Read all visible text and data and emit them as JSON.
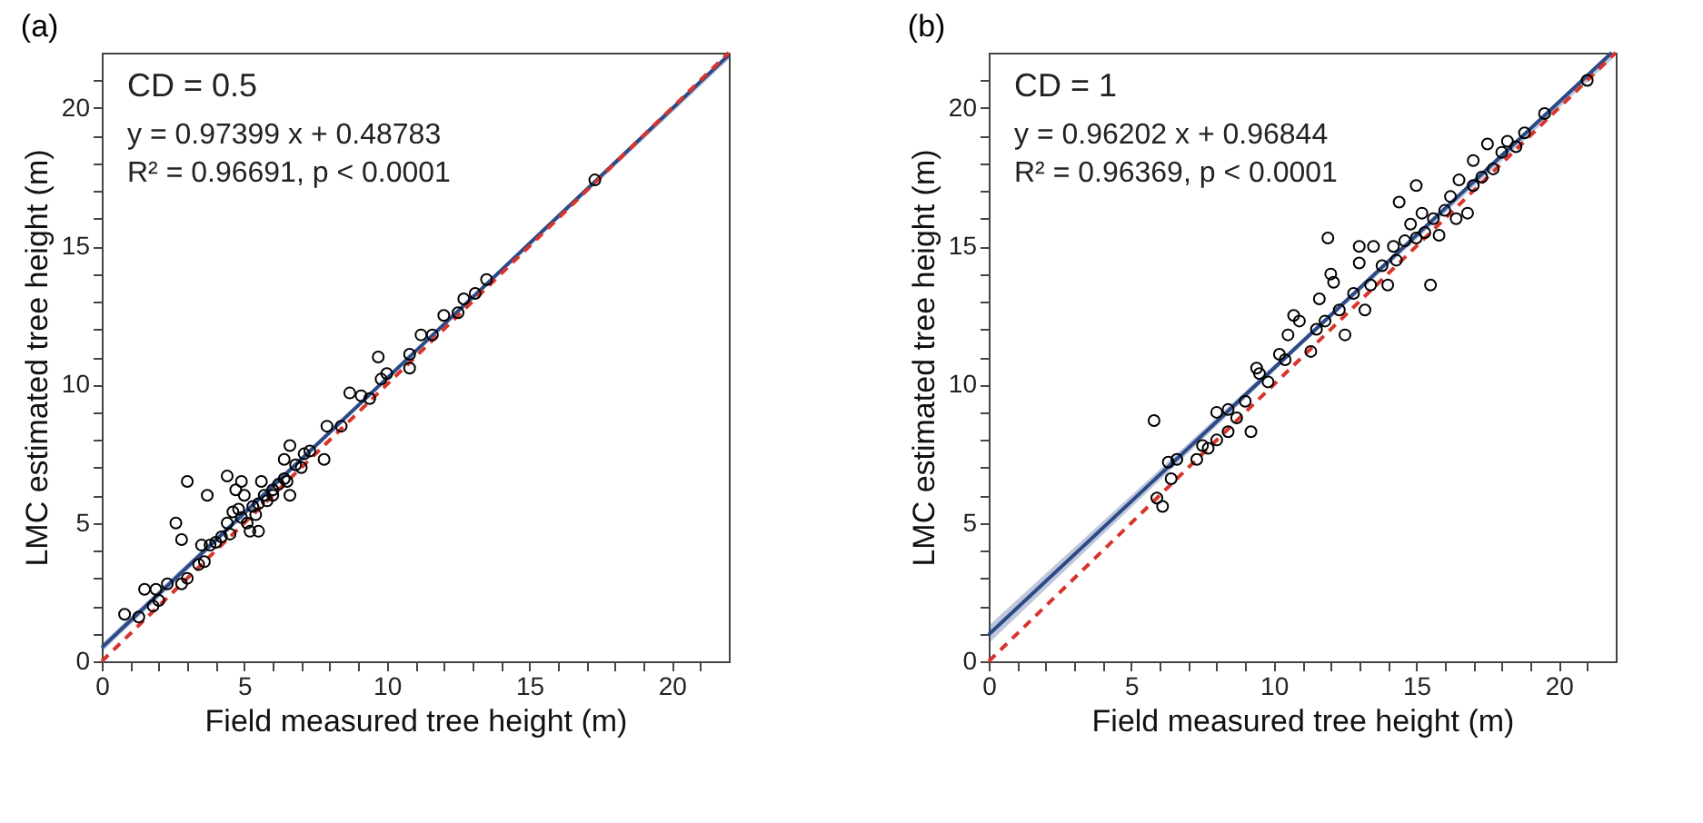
{
  "chart_data": [
    {
      "type": "scatter",
      "title": "(a)",
      "xlabel": "Field measured tree height (m)",
      "ylabel": "LMC estimated tree height (m)",
      "annotations": [
        "CD = 0.5",
        "y = 0.97399 x + 0.48783",
        "R² = 0.96691,  p < 0.0001"
      ],
      "xlim": [
        0,
        22
      ],
      "ylim": [
        0,
        22
      ],
      "xticks": [
        0,
        {
          "value": 1,
          "label": null
        },
        {
          "value": 2,
          "label": null
        },
        {
          "value": 3,
          "label": null
        },
        {
          "value": 4,
          "label": null
        },
        5,
        {
          "value": 6,
          "label": null
        },
        {
          "value": 7,
          "label": null
        },
        {
          "value": 8,
          "label": null
        },
        {
          "value": 9,
          "label": null
        },
        10,
        {
          "value": 11,
          "label": null
        },
        {
          "value": 12,
          "label": null
        },
        {
          "value": 13,
          "label": null
        },
        {
          "value": 14,
          "label": null
        },
        15,
        {
          "value": 16,
          "label": null
        },
        {
          "value": 17,
          "label": null
        },
        {
          "value": 18,
          "label": null
        },
        {
          "value": 19,
          "label": null
        },
        20,
        {
          "value": 21,
          "label": null
        }
      ],
      "yticks": [
        0,
        {
          "value": 1,
          "label": null
        },
        {
          "value": 2,
          "label": null
        },
        {
          "value": 3,
          "label": null
        },
        {
          "value": 4,
          "label": null
        },
        5,
        {
          "value": 6,
          "label": null
        },
        {
          "value": 7,
          "label": null
        },
        {
          "value": 8,
          "label": null
        },
        {
          "value": 9,
          "label": null
        },
        10,
        {
          "value": 11,
          "label": null
        },
        {
          "value": 12,
          "label": null
        },
        {
          "value": 13,
          "label": null
        },
        {
          "value": 14,
          "label": null
        },
        15,
        {
          "value": 16,
          "label": null
        },
        {
          "value": 17,
          "label": null
        },
        {
          "value": 18,
          "label": null
        },
        {
          "value": 19,
          "label": null
        },
        20,
        {
          "value": 21,
          "label": null
        }
      ],
      "grid": false,
      "series": [
        {
          "type": "line",
          "color": "#2c4a87",
          "x": [
            0,
            11,
            22
          ],
          "values": [
            0.49,
            11.2,
            21.92
          ],
          "lower": [
            0.34,
            11.13,
            21.75
          ],
          "upper": [
            0.64,
            11.27,
            22.0
          ],
          "line_style": "solid",
          "marker": "none"
        },
        {
          "type": "line",
          "color": "#d9342b",
          "x": [
            0,
            22
          ],
          "values": [
            0,
            22
          ],
          "line_style": "dashed",
          "marker": "none"
        },
        {
          "color": "#000000",
          "marker": "circle",
          "x": [
            0.8,
            1.3,
            1.5,
            1.8,
            1.9,
            2.0,
            2.3,
            2.6,
            2.8,
            2.8,
            3.0,
            3.0,
            3.4,
            3.6,
            3.7,
            3.5,
            3.8,
            4.0,
            4.2,
            4.4,
            4.4,
            4.5,
            4.6,
            4.7,
            4.8,
            4.9,
            4.9,
            5.0,
            5.1,
            5.2,
            5.3,
            5.4,
            5.5,
            5.5,
            5.6,
            5.7,
            5.8,
            6.0,
            6.0,
            6.2,
            6.4,
            6.4,
            6.5,
            6.6,
            6.6,
            6.8,
            7.0,
            7.1,
            7.3,
            7.8,
            7.9,
            8.4,
            8.7,
            9.1,
            9.4,
            9.7,
            9.8,
            10.0,
            10.8,
            10.8,
            11.2,
            11.6,
            12.0,
            12.5,
            12.7,
            13.1,
            13.5,
            17.3
          ],
          "values": [
            1.7,
            1.6,
            2.6,
            2.0,
            2.6,
            2.2,
            2.8,
            5.0,
            4.4,
            2.8,
            6.5,
            3.0,
            3.5,
            3.6,
            6.0,
            4.2,
            4.2,
            4.3,
            4.5,
            5.0,
            6.7,
            4.6,
            5.4,
            6.2,
            5.5,
            5.2,
            6.5,
            6.0,
            5.0,
            4.7,
            5.6,
            5.3,
            5.7,
            4.7,
            6.5,
            6.0,
            5.8,
            6.2,
            6.0,
            6.4,
            6.6,
            7.3,
            6.5,
            7.8,
            6.0,
            7.1,
            7.0,
            7.5,
            7.6,
            7.3,
            8.5,
            8.5,
            9.7,
            9.6,
            9.5,
            11.0,
            10.2,
            10.4,
            11.1,
            10.6,
            11.8,
            11.8,
            12.5,
            12.6,
            13.1,
            13.3,
            13.8,
            17.4
          ]
        }
      ]
    },
    {
      "type": "scatter",
      "title": "(b)",
      "xlabel": "Field measured tree height (m)",
      "ylabel": "LMC estimated tree height (m)",
      "annotations": [
        "CD = 1",
        "y = 0.96202 x + 0.96844",
        "R² = 0.96369,  p < 0.0001"
      ],
      "xlim": [
        0,
        22
      ],
      "ylim": [
        0,
        22
      ],
      "xticks": [
        0,
        {
          "value": 1,
          "label": null
        },
        {
          "value": 2,
          "label": null
        },
        {
          "value": 3,
          "label": null
        },
        {
          "value": 4,
          "label": null
        },
        5,
        {
          "value": 6,
          "label": null
        },
        {
          "value": 7,
          "label": null
        },
        {
          "value": 8,
          "label": null
        },
        {
          "value": 9,
          "label": null
        },
        10,
        {
          "value": 11,
          "label": null
        },
        {
          "value": 12,
          "label": null
        },
        {
          "value": 13,
          "label": null
        },
        {
          "value": 14,
          "label": null
        },
        15,
        {
          "value": 16,
          "label": null
        },
        {
          "value": 17,
          "label": null
        },
        {
          "value": 18,
          "label": null
        },
        {
          "value": 19,
          "label": null
        },
        20,
        {
          "value": 21,
          "label": null
        }
      ],
      "yticks": [
        0,
        {
          "value": 1,
          "label": null
        },
        {
          "value": 2,
          "label": null
        },
        {
          "value": 3,
          "label": null
        },
        {
          "value": 4,
          "label": null
        },
        5,
        {
          "value": 6,
          "label": null
        },
        {
          "value": 7,
          "label": null
        },
        {
          "value": 8,
          "label": null
        },
        {
          "value": 9,
          "label": null
        },
        10,
        {
          "value": 11,
          "label": null
        },
        {
          "value": 12,
          "label": null
        },
        {
          "value": 13,
          "label": null
        },
        {
          "value": 14,
          "label": null
        },
        15,
        {
          "value": 16,
          "label": null
        },
        {
          "value": 17,
          "label": null
        },
        {
          "value": 18,
          "label": null
        },
        {
          "value": 19,
          "label": null
        },
        20,
        {
          "value": 21,
          "label": null
        }
      ],
      "grid": false,
      "series": [
        {
          "type": "line",
          "color": "#2c4a87",
          "x": [
            0,
            11,
            21.86
          ],
          "values": [
            0.97,
            11.55,
            22
          ],
          "lower": [
            0.65,
            11.45,
            21.75
          ],
          "upper": [
            1.29,
            11.65,
            22.0
          ],
          "line_style": "solid",
          "marker": "none"
        },
        {
          "type": "line",
          "color": "#d9342b",
          "x": [
            0,
            22
          ],
          "values": [
            0,
            22
          ],
          "line_style": "dashed",
          "marker": "none"
        },
        {
          "color": "#000000",
          "marker": "circle",
          "x": [
            5.8,
            5.9,
            6.1,
            6.3,
            6.4,
            6.6,
            7.3,
            7.5,
            7.7,
            8.0,
            8.0,
            8.4,
            8.4,
            8.7,
            9.0,
            9.2,
            9.4,
            9.5,
            9.8,
            10.2,
            10.4,
            10.5,
            10.7,
            10.9,
            11.3,
            11.5,
            11.6,
            11.8,
            11.9,
            12.0,
            12.1,
            12.3,
            12.5,
            12.8,
            13.0,
            13.0,
            13.2,
            13.4,
            13.5,
            13.8,
            14.0,
            14.2,
            14.3,
            14.4,
            14.6,
            14.8,
            15.0,
            15.0,
            15.2,
            15.3,
            15.5,
            15.6,
            15.8,
            16.0,
            16.2,
            16.4,
            16.5,
            16.8,
            17.0,
            17.0,
            17.3,
            17.5,
            17.7,
            18.0,
            18.2,
            18.5,
            18.8,
            19.5,
            21.0
          ],
          "values": [
            8.7,
            5.9,
            5.6,
            7.2,
            6.6,
            7.3,
            7.3,
            7.8,
            7.7,
            8.0,
            9.0,
            9.1,
            8.3,
            8.8,
            9.4,
            8.3,
            10.6,
            10.4,
            10.1,
            11.1,
            10.9,
            11.8,
            12.5,
            12.3,
            11.2,
            12.0,
            13.1,
            12.3,
            15.3,
            14.0,
            13.7,
            12.7,
            11.8,
            13.3,
            15.0,
            14.4,
            12.7,
            13.6,
            15.0,
            14.3,
            13.6,
            15.0,
            14.5,
            16.6,
            15.2,
            15.8,
            15.3,
            17.2,
            16.2,
            15.5,
            13.6,
            16.0,
            15.4,
            16.3,
            16.8,
            16.0,
            17.4,
            16.2,
            17.2,
            18.1,
            17.5,
            18.7,
            17.8,
            18.4,
            18.8,
            18.6,
            19.1,
            19.8,
            21.0
          ]
        }
      ]
    }
  ]
}
